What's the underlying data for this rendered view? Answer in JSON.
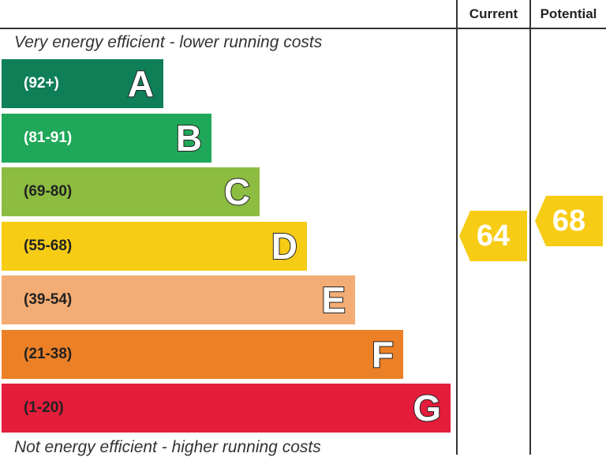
{
  "header": {
    "current_label": "Current",
    "potential_label": "Potential"
  },
  "captions": {
    "top": "Very energy efficient - lower running costs",
    "bottom": "Not energy efficient - higher running costs"
  },
  "chart_data": {
    "type": "bar",
    "bands": [
      {
        "letter": "A",
        "range": "(92+)",
        "min": 92,
        "max": 100,
        "color": "#0f7f58",
        "text_color": "#ffffff"
      },
      {
        "letter": "B",
        "range": "(81-91)",
        "min": 81,
        "max": 91,
        "color": "#1fa85a",
        "text_color": "#ffffff"
      },
      {
        "letter": "C",
        "range": "(69-80)",
        "min": 69,
        "max": 80,
        "color": "#8cbd40",
        "text_color": "#222222"
      },
      {
        "letter": "D",
        "range": "(55-68)",
        "min": 55,
        "max": 68,
        "color": "#f6cc15",
        "text_color": "#222222"
      },
      {
        "letter": "E",
        "range": "(39-54)",
        "min": 39,
        "max": 54,
        "color": "#f3ac73",
        "text_color": "#222222"
      },
      {
        "letter": "F",
        "range": "(21-38)",
        "min": 21,
        "max": 38,
        "color": "#ec8026",
        "text_color": "#222222"
      },
      {
        "letter": "G",
        "range": "(1-20)",
        "min": 1,
        "max": 20,
        "color": "#e31d3b",
        "text_color": "#222222"
      }
    ],
    "current": {
      "value": 64,
      "band": "D",
      "color": "#f6cc15"
    },
    "potential": {
      "value": 68,
      "band": "D",
      "color": "#f6cc15"
    }
  }
}
